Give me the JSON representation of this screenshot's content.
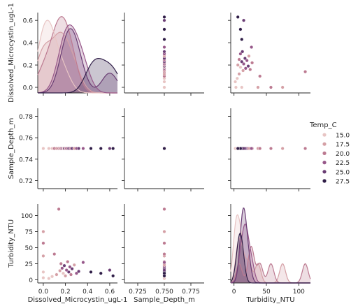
{
  "chart_data": {
    "type": "scatter",
    "variables": [
      "Dissolved_Microcystin_ugL-1",
      "Sample_Depth_m",
      "Turbidity_NTU"
    ],
    "hue_variable": "Temp_C",
    "legend": {
      "title": "Temp_C",
      "placement": "right",
      "entries": [
        "15.0",
        "17.5",
        "20.0",
        "22.5",
        "25.0",
        "27.5"
      ]
    },
    "hue_colors": [
      "#e8c5c4",
      "#d5a0a6",
      "#bc7a91",
      "#97588a",
      "#6a3d74",
      "#2f1d47"
    ],
    "x_ticks": {
      "Dissolved_Microcystin_ugL-1": [
        "0.0",
        "0.2",
        "0.4",
        "0.6"
      ],
      "Sample_Depth_m": [
        "0.725",
        "0.750",
        "0.775"
      ],
      "Turbidity_NTU": [
        "0",
        "50",
        "100"
      ]
    },
    "y_ticks": {
      "Dissolved_Microcystin_ugL-1": [
        "0.0",
        "0.2",
        "0.4",
        "0.6"
      ],
      "Sample_Depth_m": [
        "0.72",
        "0.74",
        "0.76",
        "0.78"
      ],
      "Turbidity_NTU": [
        "0",
        "25",
        "50",
        "75",
        "100"
      ]
    },
    "ranges": {
      "Dissolved_Microcystin_ugL-1": [
        -0.05,
        0.67
      ],
      "Sample_Depth_m": [
        0.7125,
        0.7875
      ],
      "Turbidity_NTU": [
        -5,
        118
      ]
    },
    "kde_ymax": {
      "Dissolved_Microcystin_ugL-1": 0.67,
      "Sample_Depth_m": 1,
      "Turbidity_NTU": 118
    },
    "points": [
      {
        "mc": 0.0,
        "depth": 0.75,
        "turb": 75,
        "temp": 17.5
      },
      {
        "mc": 0.0,
        "depth": 0.75,
        "turb": 57,
        "temp": 20.0
      },
      {
        "mc": 0.0,
        "depth": 0.75,
        "turb": 37,
        "temp": 17.5
      },
      {
        "mc": 0.0,
        "depth": 0.75,
        "turb": 12,
        "temp": 15.0
      },
      {
        "mc": 0.0,
        "depth": 0.75,
        "turb": 3,
        "temp": 15.0
      },
      {
        "mc": 0.05,
        "depth": 0.75,
        "turb": 2,
        "temp": 15.0
      },
      {
        "mc": 0.08,
        "depth": 0.75,
        "turb": 5,
        "temp": 15.0
      },
      {
        "mc": 0.1,
        "depth": 0.75,
        "turb": 40,
        "temp": 20.0
      },
      {
        "mc": 0.12,
        "depth": 0.75,
        "turb": 8,
        "temp": 17.5
      },
      {
        "mc": 0.14,
        "depth": 0.75,
        "turb": 110,
        "temp": 20.0
      },
      {
        "mc": 0.15,
        "depth": 0.75,
        "turb": 14,
        "temp": 17.5
      },
      {
        "mc": 0.16,
        "depth": 0.75,
        "turb": 25,
        "temp": 20.0
      },
      {
        "mc": 0.17,
        "depth": 0.75,
        "turb": 18,
        "temp": 22.5
      },
      {
        "mc": 0.18,
        "depth": 0.75,
        "turb": 10,
        "temp": 15.0
      },
      {
        "mc": 0.19,
        "depth": 0.75,
        "turb": 22,
        "temp": 25.0
      },
      {
        "mc": 0.2,
        "depth": 0.75,
        "turb": 6,
        "temp": 17.5
      },
      {
        "mc": 0.21,
        "depth": 0.75,
        "turb": 15,
        "temp": 22.5
      },
      {
        "mc": 0.22,
        "depth": 0.75,
        "turb": 28,
        "temp": 20.0
      },
      {
        "mc": 0.23,
        "depth": 0.75,
        "turb": 12,
        "temp": 25.0
      },
      {
        "mc": 0.24,
        "depth": 0.75,
        "turb": 20,
        "temp": 22.5
      },
      {
        "mc": 0.25,
        "depth": 0.75,
        "turb": 8,
        "temp": 20.0
      },
      {
        "mc": 0.26,
        "depth": 0.75,
        "turb": 17,
        "temp": 25.0
      },
      {
        "mc": 0.28,
        "depth": 0.75,
        "turb": 23,
        "temp": 17.5
      },
      {
        "mc": 0.3,
        "depth": 0.75,
        "turb": 10,
        "temp": 22.5
      },
      {
        "mc": 0.32,
        "depth": 0.75,
        "turb": 13,
        "temp": 25.0
      },
      {
        "mc": 0.36,
        "depth": 0.75,
        "turb": 27,
        "temp": 22.5
      },
      {
        "mc": 0.43,
        "depth": 0.75,
        "turb": 12,
        "temp": 27.5
      },
      {
        "mc": 0.52,
        "depth": 0.75,
        "turb": 10,
        "temp": 27.5
      },
      {
        "mc": 0.6,
        "depth": 0.75,
        "turb": 15,
        "temp": 25.0
      },
      {
        "mc": 0.63,
        "depth": 0.75,
        "turb": 6,
        "temp": 27.5
      }
    ]
  }
}
